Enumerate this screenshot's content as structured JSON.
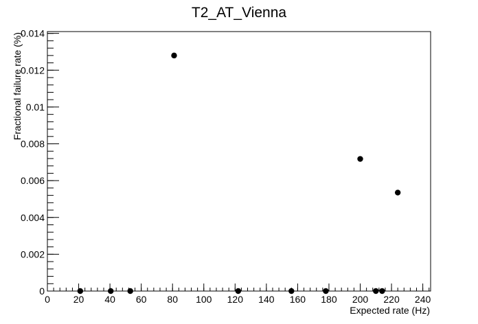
{
  "chart_data": {
    "type": "scatter",
    "title": "T2_AT_Vienna",
    "xlabel": "Expected rate (Hz)",
    "ylabel": "Fractional failure rate (%)",
    "xlim": [
      0,
      245
    ],
    "ylim": [
      0,
      0.0141
    ],
    "xticks": [
      0,
      20,
      40,
      60,
      80,
      100,
      120,
      140,
      160,
      180,
      200,
      220,
      240
    ],
    "xtick_labels": [
      "0",
      "20",
      "40",
      "60",
      "80",
      "100",
      "120",
      "140",
      "160",
      "180",
      "200",
      "220",
      "240"
    ],
    "yticks": [
      0,
      0.002,
      0.004,
      0.006,
      0.008,
      0.01,
      0.012,
      0.014
    ],
    "ytick_labels": [
      "0",
      "0.002",
      "0.004",
      "0.006",
      "0.008",
      "0.01",
      "0.012",
      "0.014"
    ],
    "grid": false,
    "legend": "none",
    "marker_color": "#000000",
    "series": [
      {
        "x": [
          21,
          40.5,
          53,
          81,
          122,
          156,
          178,
          200,
          210,
          214,
          224
        ],
        "y": [
          0,
          0,
          0,
          0.0128,
          0,
          0,
          0,
          0.00718,
          0,
          0,
          0.00535
        ]
      }
    ]
  }
}
